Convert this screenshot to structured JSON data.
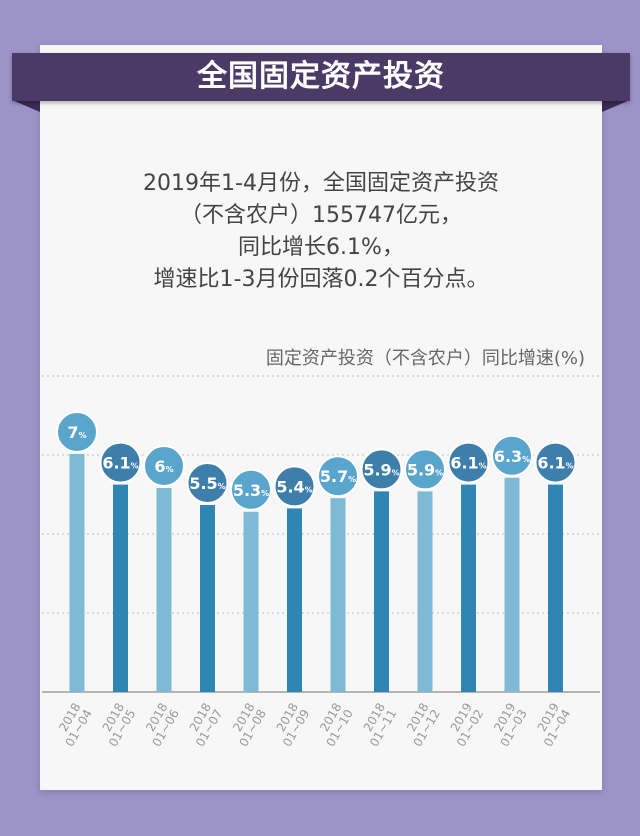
{
  "title": "全国固定资产投资",
  "summary": {
    "line1": "2019年1-4月份，全国固定资产投资",
    "line2": "（不含农户）155747亿元，",
    "line3": "同比增长6.1%，",
    "line4": "增速比1-3月份回落0.2个百分点。"
  },
  "chart_data": {
    "type": "bar",
    "title": "固定资产投资（不含农户）同比增速(%)",
    "categories": [
      "2018\n01~04",
      "2018\n01~05",
      "2018\n01~06",
      "2018\n01~07",
      "2018\n01~08",
      "2018\n01~09",
      "2018\n01~10",
      "2018\n01~11",
      "2018\n01~12",
      "2019\n01~02",
      "2019\n01~03",
      "2019\n01~04"
    ],
    "values": [
      7,
      6.1,
      6,
      5.5,
      5.3,
      5.4,
      5.7,
      5.9,
      5.9,
      6.1,
      6.3,
      6.1
    ],
    "labels": [
      "7",
      "6.1",
      "6",
      "5.5",
      "5.3",
      "5.4",
      "5.7",
      "5.9",
      "5.9",
      "6.1",
      "6.3",
      "6.1"
    ],
    "unit": "%",
    "grid": true,
    "colors": {
      "bar_light": "#7eb9d5",
      "bar_dark": "#2f86b5",
      "bubble_light": "#5aa5cc",
      "bubble_dark": "#3e7eab"
    }
  }
}
